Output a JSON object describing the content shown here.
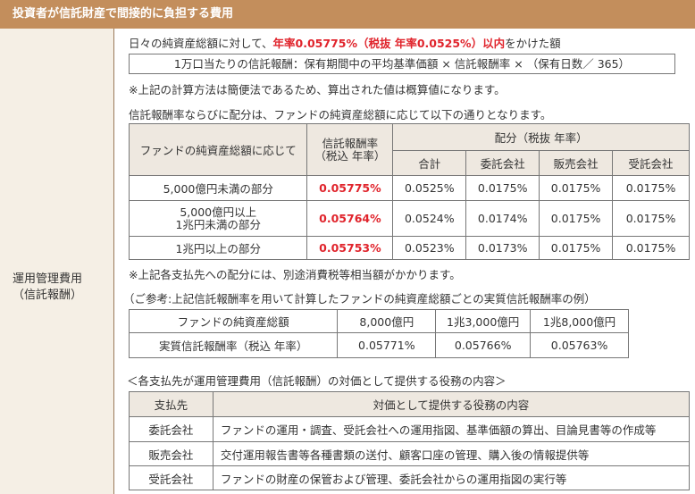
{
  "header": {
    "title": "投資者が信託財産で間接的に負担する費用"
  },
  "left": {
    "label_line1": "運用管理費用",
    "label_line2": "（信託報酬）"
  },
  "intro": {
    "pre": "日々の純資産総額に対して、",
    "rate": "年率0.05775%（税抜 年率0.0525%）以内",
    "post": "をかけた額"
  },
  "formula": "1万口当たりの信託報酬：保有期間中の平均基準価額 × 信託報酬率 × （保有日数／ 365）",
  "note1": "※上記の計算方法は簡便法であるため、算出された値は概算値になります。",
  "note2": "信託報酬率ならびに配分は、ファンドの純資産総額に応じて以下の通りとなります。",
  "fee_table": {
    "h_asset": "ファンドの純資産総額に応じて",
    "h_rate_1": "信託報酬率",
    "h_rate_2": "（税込 年率）",
    "h_alloc": "配分（税抜 年率）",
    "h_sub": [
      "合計",
      "委託会社",
      "販売会社",
      "受託会社"
    ],
    "rows": [
      {
        "asset_1": "5,000億円未満の部分",
        "asset_2": "",
        "rate": "0.05775%",
        "total": "0.0525%",
        "itaku": "0.0175%",
        "hanbai": "0.0175%",
        "jutaku": "0.0175%"
      },
      {
        "asset_1": "5,000億円以上",
        "asset_2": "1兆円未満の部分",
        "rate": "0.05764%",
        "total": "0.0524%",
        "itaku": "0.0174%",
        "hanbai": "0.0175%",
        "jutaku": "0.0175%"
      },
      {
        "asset_1": "1兆円以上の部分",
        "asset_2": "",
        "rate": "0.05753%",
        "total": "0.0523%",
        "itaku": "0.0173%",
        "hanbai": "0.0175%",
        "jutaku": "0.0175%"
      }
    ]
  },
  "note3": "※上記各支払先への配分には、別途消費税等相当額がかかります。",
  "ref_title": "（ご参考:上記信託報酬率を用いて計算したファンドの純資産総額ごとの実質信託報酬率の例）",
  "ref_table": {
    "h_label": "ファンドの純資産総額",
    "h_cols": [
      "8,000億円",
      "1兆3,000億円",
      "1兆8,000億円"
    ],
    "r_label": "実質信託報酬率（税込 年率）",
    "r_vals": [
      "0.05771%",
      "0.05766%",
      "0.05763%"
    ]
  },
  "service_title": "＜各支払先が運用管理費用（信託報酬）の対価として提供する役務の内容＞",
  "service_table": {
    "h1": "支払先",
    "h2": "対価として提供する役務の内容",
    "rows": [
      {
        "payee": "委託会社",
        "desc": "ファンドの運用・調査、受託会社への運用指図、基準価額の算出、目論見書等の作成等"
      },
      {
        "payee": "販売会社",
        "desc": "交付運用報告書等各種書類の送付、顧客口座の管理、購入後の情報提供等"
      },
      {
        "payee": "受託会社",
        "desc": "ファンドの財産の保管および管理、委託会社からの運用指図の実行等"
      }
    ]
  }
}
